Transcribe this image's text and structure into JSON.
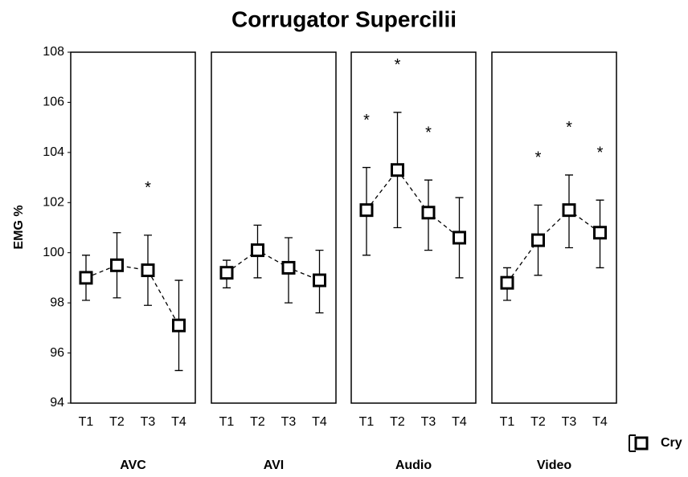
{
  "chart_data": {
    "type": "line",
    "title": "Corrugator Supercilii",
    "ylabel": "EMG %",
    "ylim": [
      94,
      108
    ],
    "yticks": [
      94,
      96,
      98,
      100,
      102,
      104,
      106,
      108
    ],
    "legend": "Cry",
    "color": "#000000",
    "panels": [
      {
        "label": "AVC",
        "categories": [
          "T1",
          "T2",
          "T3",
          "T4"
        ],
        "values": [
          99.0,
          99.5,
          99.3,
          97.1
        ],
        "lower": [
          98.1,
          98.2,
          97.9,
          95.3
        ],
        "upper": [
          99.9,
          100.8,
          100.7,
          98.9
        ],
        "stars": [
          null,
          null,
          "*",
          null
        ]
      },
      {
        "label": "AVI",
        "categories": [
          "T1",
          "T2",
          "T3",
          "T4"
        ],
        "values": [
          99.2,
          100.1,
          99.4,
          98.9
        ],
        "lower": [
          98.6,
          99.0,
          98.0,
          97.6
        ],
        "upper": [
          99.7,
          101.1,
          100.6,
          100.1
        ],
        "stars": [
          null,
          null,
          null,
          null
        ]
      },
      {
        "label": "Audio",
        "categories": [
          "T1",
          "T2",
          "T3",
          "T4"
        ],
        "values": [
          101.7,
          103.3,
          101.6,
          100.6
        ],
        "lower": [
          99.9,
          101.0,
          100.1,
          99.0
        ],
        "upper": [
          103.4,
          105.6,
          102.9,
          102.2
        ],
        "stars": [
          "*",
          "*",
          "*",
          null
        ]
      },
      {
        "label": "Video",
        "categories": [
          "T1",
          "T2",
          "T3",
          "T4"
        ],
        "values": [
          98.8,
          100.5,
          101.7,
          100.8
        ],
        "lower": [
          98.1,
          99.1,
          100.2,
          99.4
        ],
        "upper": [
          99.4,
          101.9,
          103.1,
          102.1
        ],
        "stars": [
          null,
          "*",
          "*",
          "*"
        ]
      }
    ]
  }
}
